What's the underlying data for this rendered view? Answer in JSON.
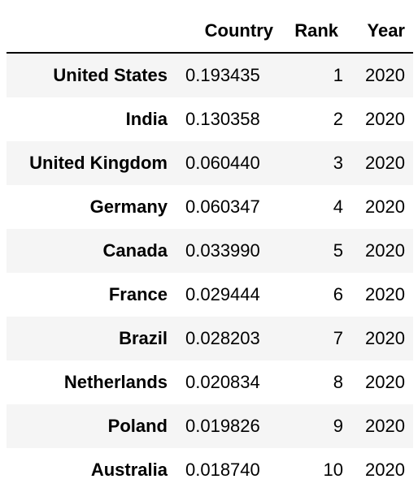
{
  "table": {
    "columns": {
      "index": "",
      "country": "Country",
      "rank": "Rank",
      "year": "Year"
    },
    "rows": [
      {
        "index": "United States",
        "country": "0.193435",
        "rank": "1",
        "year": "2020"
      },
      {
        "index": "India",
        "country": "0.130358",
        "rank": "2",
        "year": "2020"
      },
      {
        "index": "United Kingdom",
        "country": "0.060440",
        "rank": "3",
        "year": "2020"
      },
      {
        "index": "Germany",
        "country": "0.060347",
        "rank": "4",
        "year": "2020"
      },
      {
        "index": "Canada",
        "country": "0.033990",
        "rank": "5",
        "year": "2020"
      },
      {
        "index": "France",
        "country": "0.029444",
        "rank": "6",
        "year": "2020"
      },
      {
        "index": "Brazil",
        "country": "0.028203",
        "rank": "7",
        "year": "2020"
      },
      {
        "index": "Netherlands",
        "country": "0.020834",
        "rank": "8",
        "year": "2020"
      },
      {
        "index": "Poland",
        "country": "0.019826",
        "rank": "9",
        "year": "2020"
      },
      {
        "index": "Australia",
        "country": "0.018740",
        "rank": "10",
        "year": "2020"
      }
    ]
  }
}
